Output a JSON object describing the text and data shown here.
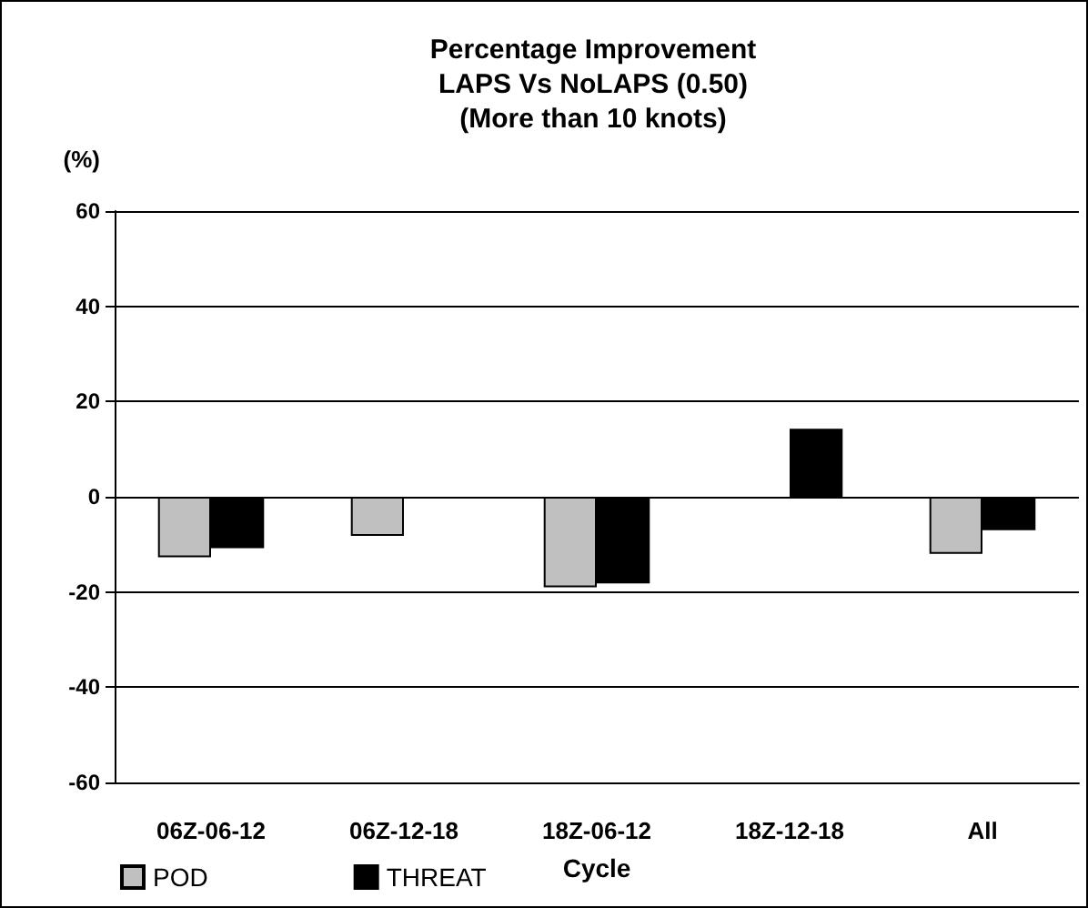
{
  "chart_data": {
    "type": "bar",
    "title": "Percentage Improvement\nLAPS Vs NoLAPS (0.50)\n(More than 10 knots)",
    "xlabel": "Cycle",
    "ylabel": "(%)",
    "categories": [
      "06Z-06-12",
      "06Z-12-18",
      "18Z-06-12",
      "18Z-12-18",
      "All"
    ],
    "series": [
      {
        "name": "POD",
        "color": "#c0c0c0",
        "values": [
          -12.7,
          -8.2,
          -19,
          null,
          -12
        ]
      },
      {
        "name": "THREAT",
        "color": "#000000",
        "values": [
          -10.8,
          null,
          -18.2,
          14.3,
          -7
        ]
      }
    ],
    "ylim": [
      -60,
      60
    ],
    "yticks": [
      -60,
      -40,
      -20,
      0,
      20,
      40,
      60
    ],
    "grid": "y",
    "legend": "bottom left"
  }
}
